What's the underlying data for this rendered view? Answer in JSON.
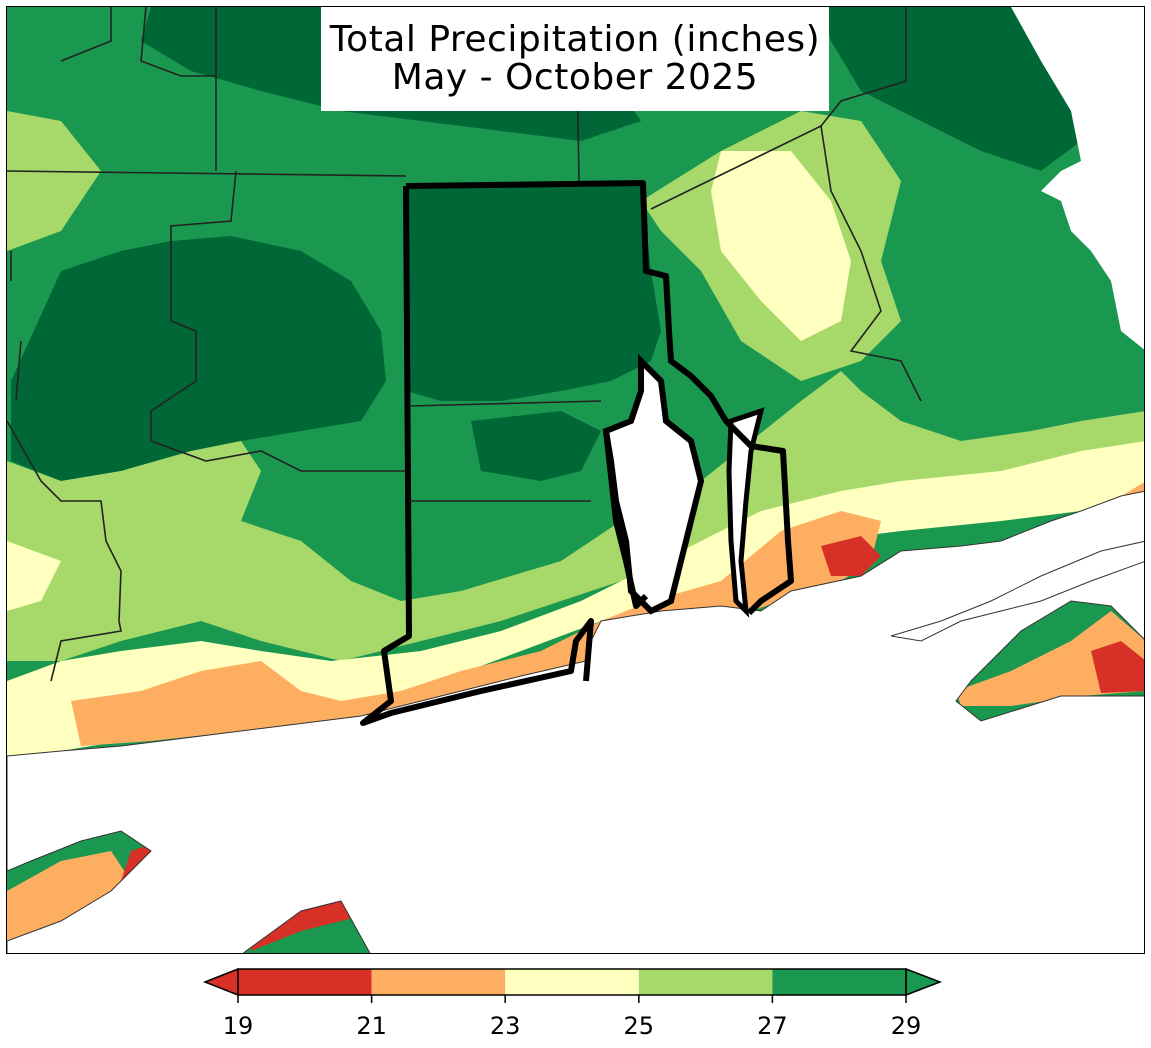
{
  "title": {
    "line1": "Total Precipitation (inches)",
    "line2": "May - October 2025"
  },
  "colors": {
    "c19_21": "#d73027",
    "c21_23": "#fdae61",
    "c23_25": "#ffffbf",
    "c25_27": "#a6d96a",
    "c27_29": "#1a9850",
    "over29": "#006837",
    "under19": "#a50026",
    "water": "#ffffff",
    "borders": "#000000"
  },
  "colorbar": {
    "ticks": [
      "19",
      "21",
      "23",
      "25",
      "27",
      "29"
    ],
    "bins": [
      {
        "from": 19,
        "to": 21,
        "color": "#d73027"
      },
      {
        "from": 21,
        "to": 23,
        "color": "#fdae61"
      },
      {
        "from": 23,
        "to": 25,
        "color": "#ffffbf"
      },
      {
        "from": 25,
        "to": 27,
        "color": "#a6d96a"
      },
      {
        "from": 27,
        "to": 29,
        "color": "#1a9850"
      }
    ],
    "extend_low_color": "#d73027",
    "extend_high_color": "#1a9850"
  }
}
